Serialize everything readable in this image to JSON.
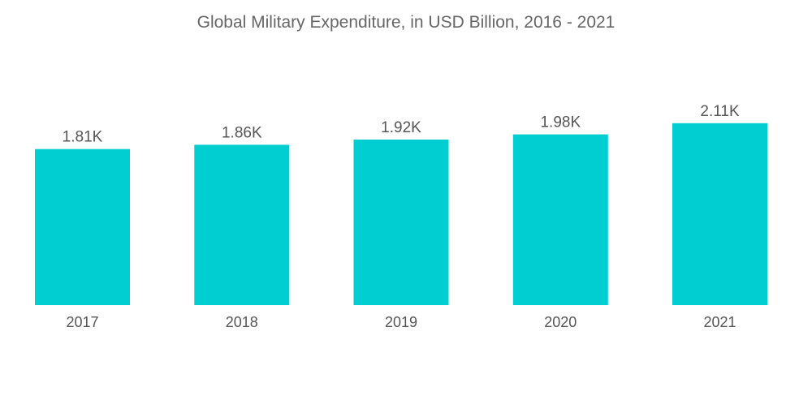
{
  "chart_data": {
    "type": "bar",
    "title": "Global Military Expenditure, in USD Billion, 2016 - 2021",
    "categories": [
      "2017",
      "2018",
      "2019",
      "2020",
      "2021"
    ],
    "values": [
      1810,
      1860,
      1920,
      1980,
      2110
    ],
    "data_labels": [
      "1.81K",
      "1.86K",
      "1.92K",
      "1.98K",
      "2.11K"
    ],
    "xlabel": "",
    "ylabel": "",
    "ylim": [
      0,
      2400
    ],
    "grid": false,
    "legend": "none",
    "colors": {
      "bar": "#00CED1",
      "text": "#555555",
      "title": "#666666"
    }
  }
}
